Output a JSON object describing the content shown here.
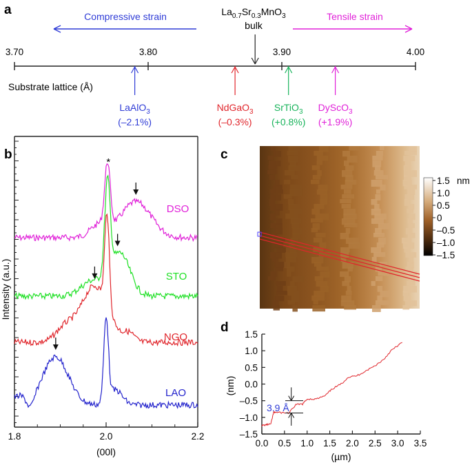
{
  "panels": {
    "a": "a",
    "b": "b",
    "c": "c",
    "d": "d"
  },
  "panel_a": {
    "compressive_label": "Compressive strain",
    "tensile_label": "Tensile strain",
    "bulk_formula": {
      "base1": "La",
      "sub1": "0.7",
      "base2": "Sr",
      "sub2": "0.3",
      "base3": "MnO",
      "sub3": "3"
    },
    "bulk_label": "bulk",
    "axis_label": "Substrate lattice (Å)",
    "colors": {
      "compressive": "#2e3bd6",
      "tensile": "#e020d8",
      "axis": "#222222"
    }
  },
  "chart_data": [
    {
      "type": "number-line",
      "xlabel": "Substrate lattice (Å)",
      "xlim": [
        3.7,
        4.0
      ],
      "ticks": [
        "3.70",
        "3.80",
        "3.90",
        "4.00"
      ],
      "bulk_value": 3.88,
      "markers": [
        {
          "name": "LaAlO",
          "sub": "3",
          "strain": "(–2.1%)",
          "value": 3.79,
          "color": "#2e3bd6"
        },
        {
          "name": "NdGaO",
          "sub": "3",
          "strain": "(–0.3%)",
          "value": 3.865,
          "color": "#e0252b"
        },
        {
          "name": "SrTiO",
          "sub": "3",
          "strain": "(+0.8%)",
          "value": 3.905,
          "color": "#17b35a"
        },
        {
          "name": "DyScO",
          "sub": "3",
          "strain": "(+1.9%)",
          "value": 3.94,
          "color": "#e020d8"
        }
      ]
    },
    {
      "type": "line",
      "title": "",
      "xlabel": "(00l)",
      "ylabel": "Intensity (a.u.)",
      "xlim": [
        1.8,
        2.2
      ],
      "xticks": [
        "1.8",
        "2.0",
        "2.2"
      ],
      "peak_marker": "*",
      "series": [
        {
          "name": "DSO",
          "color": "#e020d8",
          "film_peak": 2.065
        },
        {
          "name": "STO",
          "color": "#1ee024",
          "film_peak": 2.025
        },
        {
          "name": "NGO",
          "color": "#e0252b",
          "film_peak": 1.975
        },
        {
          "name": "LAO",
          "color": "#2222cc",
          "film_peak": 1.89
        }
      ]
    },
    {
      "type": "heatmap",
      "colorbar_unit": "nm",
      "colorbar_ticks": [
        "1.5",
        "1.0",
        "0.5",
        "0",
        "–0.5",
        "–1.0",
        "–1.5"
      ],
      "range": [
        -1.5,
        1.5
      ],
      "line_profile_color": "#e0252b"
    },
    {
      "type": "line",
      "xlabel": "(µm)",
      "ylabel": "(nm)",
      "xlim": [
        0.0,
        3.5
      ],
      "ylim": [
        -1.5,
        1.5
      ],
      "xticks": [
        "0.0",
        "0.5",
        "1.0",
        "1.5",
        "2.0",
        "2.5",
        "3.0",
        "3.5"
      ],
      "yticks": [
        "1.5",
        "1.0",
        "0.5",
        "0.0",
        "–0.5",
        "–1.0",
        "–1.5"
      ],
      "step_annotation": "3.9 Å",
      "step_position_um": 0.65,
      "color": "#e0252b",
      "x": [
        0.0,
        0.1,
        0.2,
        0.26,
        0.3,
        0.45,
        0.6,
        0.75,
        0.9,
        1.0,
        1.2,
        1.4,
        1.55,
        1.75,
        1.9,
        2.1,
        2.3,
        2.5,
        2.7,
        2.85,
        3.0,
        3.1
      ],
      "y": [
        -1.25,
        -1.22,
        -1.2,
        -0.85,
        -0.85,
        -0.86,
        -0.87,
        -0.62,
        -0.6,
        -0.45,
        -0.45,
        -0.35,
        -0.15,
        0.0,
        0.2,
        0.25,
        0.4,
        0.55,
        0.75,
        1.0,
        1.15,
        1.25
      ]
    }
  ]
}
